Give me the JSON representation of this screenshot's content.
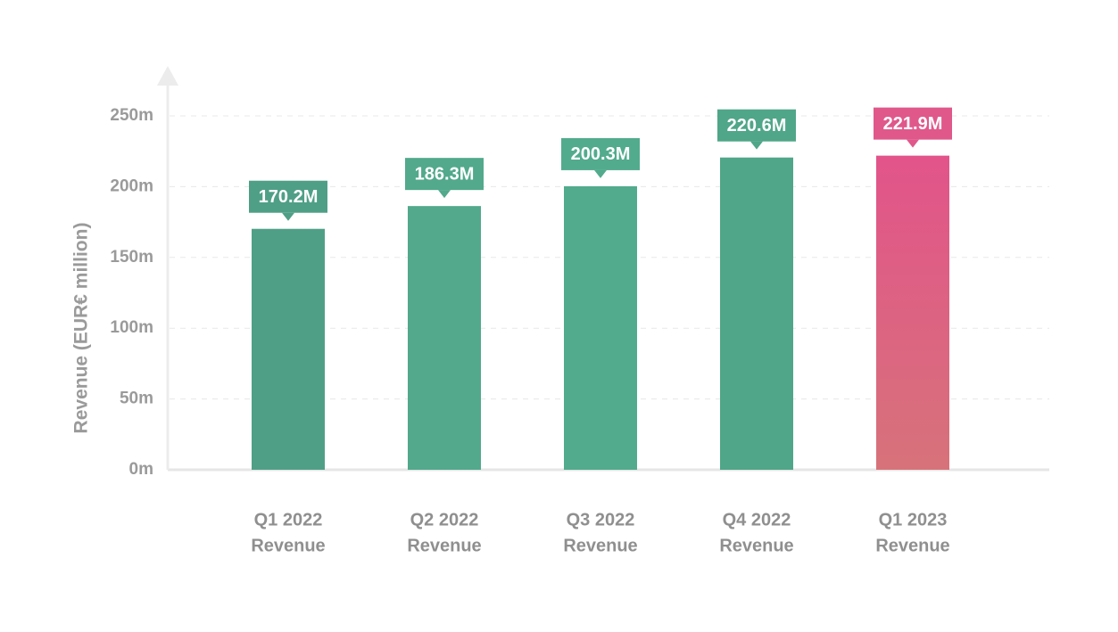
{
  "chart_data": {
    "type": "bar",
    "y_label": "Revenue (EUR€ million)",
    "categories": [
      "Q1 2022",
      "Q2 2022",
      "Q3 2022",
      "Q4 2022",
      "Q1 2023"
    ],
    "category_sublabels": [
      "Revenue",
      "Revenue",
      "Revenue",
      "Revenue",
      "Revenue"
    ],
    "values": [
      170.2,
      186.3,
      200.3,
      220.6,
      221.9
    ],
    "value_labels": [
      "170.2M",
      "186.3M",
      "200.3M",
      "220.6M",
      "221.9M"
    ],
    "colors": [
      "#4f9f86",
      "#52a98c",
      "#52ab8d",
      "#50a688",
      "#e0588a"
    ],
    "ylim": [
      0,
      250
    ],
    "yticks": [
      {
        "value": 0,
        "label": "0m"
      },
      {
        "value": 50,
        "label": "50m"
      },
      {
        "value": 100,
        "label": "100m"
      },
      {
        "value": 150,
        "label": "150m"
      },
      {
        "value": 200,
        "label": "200m"
      },
      {
        "value": 250,
        "label": "250m"
      }
    ],
    "grid": true
  }
}
